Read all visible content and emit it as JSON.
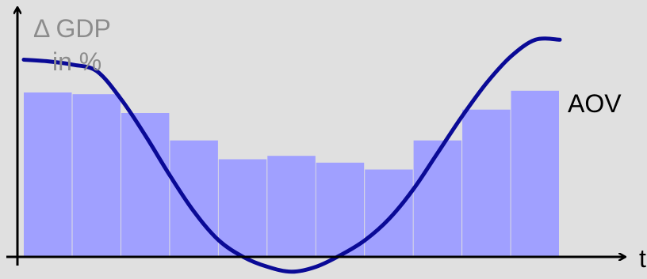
{
  "chart_data": {
    "type": "bar",
    "y_title_line1": "Δ GDP",
    "y_title_line2": "in %",
    "x_label": "t",
    "bar_values": [
      48,
      47.5,
      42,
      34,
      28.5,
      29.5,
      27.5,
      25.5,
      34,
      43,
      48.5
    ],
    "bar_color": "#a0a0ff",
    "series": [
      {
        "name": "AOV",
        "type": "line",
        "color": "#0a0a96",
        "x": [
          0.0,
          0.5,
          1.0,
          1.5,
          2.0,
          2.5,
          3.0,
          3.5,
          4.0,
          4.5,
          5.0,
          5.5,
          6.0,
          6.5,
          7.0,
          7.5,
          8.0,
          8.5,
          9.0,
          9.5,
          10.0,
          10.5,
          11.0
        ],
        "values": [
          57,
          56.5,
          55.5,
          53.5,
          45,
          34,
          22,
          11,
          2.5,
          -2.5,
          -5.5,
          -7,
          -5.5,
          -2,
          2.5,
          9,
          18,
          29,
          40,
          50,
          58,
          63,
          63
        ]
      }
    ],
    "ylim": [
      -8,
      75
    ],
    "xlim": [
      0,
      11
    ]
  }
}
